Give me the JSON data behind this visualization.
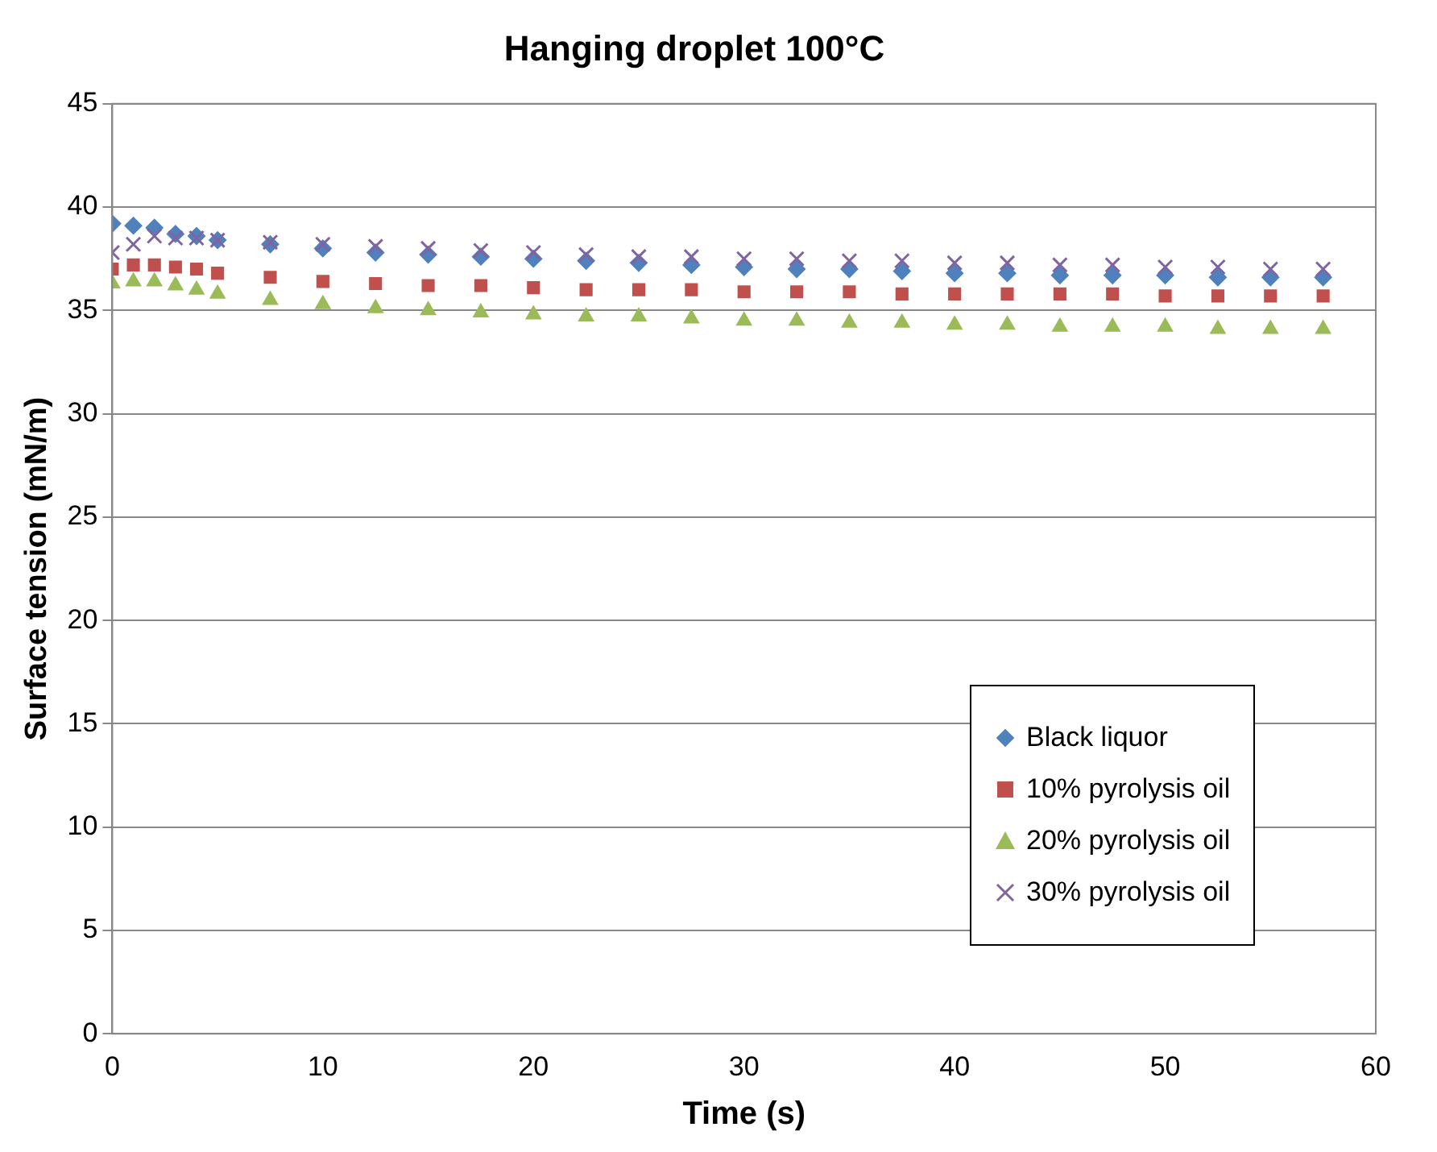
{
  "chart_data": {
    "type": "scatter",
    "title": "Hanging droplet 100°C",
    "xlabel": "Time (s)",
    "ylabel": "Surface tension (mN/m)",
    "x": [
      0,
      1,
      2,
      3,
      4,
      5,
      7.5,
      10,
      12.5,
      15,
      17.5,
      20,
      22.5,
      25,
      27.5,
      30,
      32.5,
      35,
      37.5,
      40,
      42.5,
      45,
      47.5,
      50,
      52.5,
      55,
      57.5
    ],
    "series": [
      {
        "name": "Black liquor",
        "color": "#4f81bd",
        "marker": "diamond",
        "values": [
          39.2,
          39.1,
          39.0,
          38.7,
          38.6,
          38.4,
          38.2,
          38.0,
          37.8,
          37.7,
          37.6,
          37.5,
          37.4,
          37.3,
          37.2,
          37.1,
          37.0,
          37.0,
          36.9,
          36.8,
          36.8,
          36.7,
          36.7,
          36.7,
          36.6,
          36.6,
          36.6
        ]
      },
      {
        "name": "10% pyrolysis oil",
        "color": "#c0504d",
        "marker": "square",
        "values": [
          37.0,
          37.2,
          37.2,
          37.1,
          37.0,
          36.8,
          36.6,
          36.4,
          36.3,
          36.2,
          36.2,
          36.1,
          36.0,
          36.0,
          36.0,
          35.9,
          35.9,
          35.9,
          35.8,
          35.8,
          35.8,
          35.8,
          35.8,
          35.7,
          35.7,
          35.7,
          35.7
        ]
      },
      {
        "name": "20% pyrolysis oil",
        "color": "#9bbb59",
        "marker": "triangle",
        "values": [
          36.3,
          36.4,
          36.4,
          36.2,
          36.0,
          35.8,
          35.5,
          35.3,
          35.1,
          35.0,
          34.9,
          34.8,
          34.7,
          34.7,
          34.6,
          34.5,
          34.5,
          34.4,
          34.4,
          34.3,
          34.3,
          34.2,
          34.2,
          34.2,
          34.1,
          34.1,
          34.1
        ]
      },
      {
        "name": "30% pyrolysis oil",
        "color": "#8064a2",
        "marker": "cross",
        "values": [
          37.8,
          38.2,
          38.6,
          38.5,
          38.5,
          38.4,
          38.3,
          38.2,
          38.1,
          38.0,
          37.9,
          37.8,
          37.7,
          37.6,
          37.6,
          37.5,
          37.5,
          37.4,
          37.4,
          37.3,
          37.3,
          37.2,
          37.2,
          37.1,
          37.1,
          37.0,
          37.0
        ]
      }
    ],
    "xlim": [
      0,
      60
    ],
    "xticks": [
      0,
      10,
      20,
      30,
      40,
      50,
      60
    ],
    "ylim": [
      0,
      45
    ],
    "yticks": [
      0,
      5,
      10,
      15,
      20,
      25,
      30,
      35,
      40,
      45
    ],
    "grid": "y",
    "legend": "bottom right"
  }
}
